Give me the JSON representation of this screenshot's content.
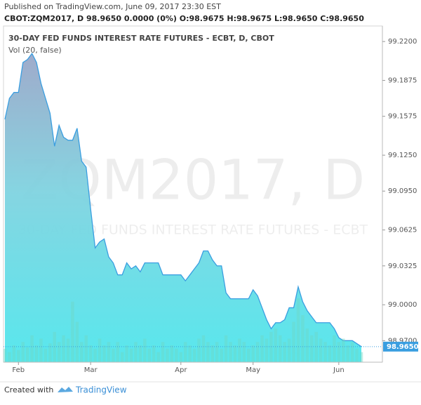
{
  "header": {
    "published": "Published on TradingView.com, June 09, 2017 23:30 EST",
    "quote": "CBOT:ZQM2017, D  98.9650  0.0000 (0%)  O:98.9675  H:98.9675  L:98.9650  C:98.9650"
  },
  "footer": {
    "created_with": "Created with",
    "brand": "TradingView"
  },
  "chart_data": {
    "type": "area",
    "title": "30-DAY FED FUNDS INTEREST RATE FUTURES - ECBT, D, CBOT",
    "indicator": "Vol (20, false)",
    "watermark": "ZQM2017, D",
    "watermark_subtitle": "30-DAY FED FUNDS INTEREST RATE FUTURES - ECBT",
    "categories": [
      null,
      null,
      null,
      "Feb",
      null,
      null,
      null,
      null,
      null,
      null,
      null,
      null,
      null,
      null,
      null,
      null,
      null,
      null,
      null,
      "Mar",
      null,
      null,
      null,
      null,
      null,
      null,
      null,
      null,
      null,
      null,
      null,
      null,
      null,
      null,
      null,
      null,
      null,
      null,
      null,
      "Apr",
      null,
      null,
      null,
      null,
      null,
      null,
      null,
      null,
      null,
      null,
      null,
      null,
      null,
      null,
      null,
      "May",
      null,
      null,
      null,
      null,
      null,
      null,
      null,
      null,
      null,
      null,
      null,
      null,
      null,
      null,
      null,
      null,
      null,
      null,
      "Jun",
      null,
      null,
      null,
      null,
      null
    ],
    "series": [
      {
        "name": "ZQM2017",
        "color": "#3a9ee0",
        "values": [
          99.155,
          99.1725,
          99.1775,
          99.1775,
          99.2025,
          99.205,
          99.21,
          99.2025,
          99.185,
          99.1725,
          99.16,
          99.1325,
          99.15,
          99.14,
          99.1375,
          99.1375,
          99.1475,
          99.12,
          99.115,
          99.08,
          99.0475,
          99.0525,
          99.055,
          99.04,
          99.035,
          99.025,
          99.025,
          99.035,
          99.03,
          99.0325,
          99.0275,
          99.035,
          99.035,
          99.035,
          99.035,
          99.025,
          99.025,
          99.025,
          99.025,
          99.025,
          99.02,
          99.025,
          99.03,
          99.035,
          99.045,
          99.045,
          99.0375,
          99.0325,
          99.0325,
          99.01,
          99.005,
          99.005,
          99.005,
          99.005,
          99.005,
          99.0125,
          99.0075,
          98.9975,
          98.9875,
          98.98,
          98.985,
          98.985,
          98.9875,
          98.9975,
          98.9975,
          99.015,
          99.0025,
          98.995,
          98.99,
          98.985,
          98.985,
          98.985,
          98.985,
          98.98,
          98.9725,
          98.97,
          98.97,
          98.97,
          98.9675,
          98.965
        ]
      },
      {
        "name": "Vol",
        "color": "#6fd6c6",
        "axis": "y2",
        "values": [
          20,
          15,
          25,
          18,
          30,
          22,
          40,
          25,
          35,
          20,
          28,
          45,
          30,
          40,
          35,
          90,
          60,
          30,
          40,
          25,
          20,
          35,
          25,
          30,
          20,
          30,
          15,
          25,
          20,
          30,
          25,
          35,
          20,
          25,
          15,
          30,
          20,
          25,
          20,
          15,
          30,
          25,
          20,
          35,
          40,
          30,
          25,
          30,
          20,
          40,
          30,
          25,
          35,
          30,
          20,
          25,
          30,
          40,
          35,
          45,
          50,
          40,
          30,
          35,
          60,
          95,
          70,
          50,
          40,
          45,
          35,
          30,
          25,
          40,
          30,
          35,
          25,
          30,
          20,
          15
        ]
      }
    ],
    "ylim": [
      98.952,
      99.233
    ],
    "y2lim": [
      0,
      500
    ],
    "yticks": [
      {
        "value": 99.22,
        "label": "99.2200"
      },
      {
        "value": 99.1875,
        "label": "99.1875"
      },
      {
        "value": 99.1575,
        "label": "99.1575"
      },
      {
        "value": 99.125,
        "label": "99.1250"
      },
      {
        "value": 99.095,
        "label": "99.0950"
      },
      {
        "value": 99.0625,
        "label": "99.0625"
      },
      {
        "value": 99.0325,
        "label": "99.0325"
      },
      {
        "value": 99.0,
        "label": "99.0000"
      },
      {
        "value": 98.97,
        "label": "98.9700"
      }
    ],
    "last_label": {
      "value": 98.965,
      "label": "98.9650"
    },
    "grid": false
  }
}
